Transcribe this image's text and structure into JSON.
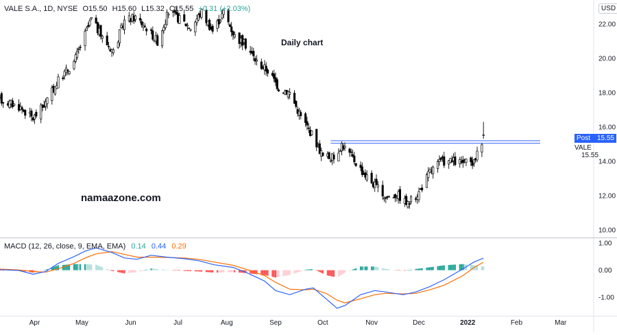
{
  "header": {
    "symbol": "VALE S.A., 1D, NYSE",
    "open": "O15.50",
    "high": "H15.60",
    "low": "L15.32",
    "close": "C15.55",
    "change": "+0.31 (+2.03%)"
  },
  "annotations": {
    "title": "Daily chart",
    "watermark": "namaazone.com"
  },
  "price_scale": {
    "currency": "USD",
    "post_label": "Post",
    "post_value": "15.55",
    "symbol_tag": "VALE",
    "symbol_value": "15.55"
  },
  "macd_legend": {
    "label": "MACD (12, 26, close, 9, EMA, EMA)",
    "hist": "0.14",
    "macd": "0.44",
    "signal": "0.29"
  },
  "colors": {
    "up": "#ffffff",
    "down": "#000000",
    "wick": "#000000",
    "macd_line": "#2962ff",
    "signal_line": "#ff6d00",
    "hist_pos_strong": "#26a69a",
    "hist_pos_weak": "#b2dfdb",
    "hist_neg_strong": "#ff5252",
    "hist_neg_weak": "#ffcdd2",
    "resistance": "#2962ff",
    "post_badge": "#2962ff"
  },
  "chart_data": [
    {
      "type": "candlestick",
      "title": "",
      "y_ticks": [
        "10.00",
        "12.00",
        "14.00",
        "16.00",
        "18.00",
        "20.00",
        "22.00"
      ],
      "x_ticks": [
        "Apr",
        "May",
        "Jun",
        "Jul",
        "Aug",
        "Sep",
        "Oct",
        "Nov",
        "Dec",
        "2022",
        "Feb",
        "Mar"
      ],
      "ylim": [
        9.6,
        23.4
      ],
      "x_range": [
        "2021-03-10",
        "2022-03-22"
      ],
      "last": {
        "date": "2022-01-11",
        "open": 15.5,
        "high": 15.6,
        "low": 15.32,
        "close": 15.55
      },
      "resistance_levels": [
        15.05,
        15.2
      ],
      "trend_points": [
        [
          "2021-03-10",
          17.6
        ],
        [
          "2021-03-22",
          17.2
        ],
        [
          "2021-03-31",
          16.5
        ],
        [
          "2021-04-08",
          17.4
        ],
        [
          "2021-04-16",
          18.7
        ],
        [
          "2021-04-26",
          19.8
        ],
        [
          "2021-05-03",
          21.4
        ],
        [
          "2021-05-07",
          22.3
        ],
        [
          "2021-05-14",
          21.2
        ],
        [
          "2021-05-21",
          20.4
        ],
        [
          "2021-05-28",
          22.2
        ],
        [
          "2021-06-04",
          22.4
        ],
        [
          "2021-06-11",
          21.8
        ],
        [
          "2021-06-18",
          21.0
        ],
        [
          "2021-06-25",
          22.7
        ],
        [
          "2021-07-02",
          22.3
        ],
        [
          "2021-07-09",
          21.8
        ],
        [
          "2021-07-16",
          22.7
        ],
        [
          "2021-07-23",
          21.6
        ],
        [
          "2021-07-30",
          22.7
        ],
        [
          "2021-08-06",
          21.3
        ],
        [
          "2021-08-13",
          20.8
        ],
        [
          "2021-08-20",
          19.8
        ],
        [
          "2021-08-27",
          19.3
        ],
        [
          "2021-09-03",
          18.3
        ],
        [
          "2021-09-10",
          18.0
        ],
        [
          "2021-09-17",
          16.6
        ],
        [
          "2021-09-24",
          15.6
        ],
        [
          "2021-10-01",
          14.3
        ],
        [
          "2021-10-08",
          14.2
        ],
        [
          "2021-10-13",
          15.0
        ],
        [
          "2021-10-20",
          14.2
        ],
        [
          "2021-10-27",
          13.3
        ],
        [
          "2021-11-03",
          12.6
        ],
        [
          "2021-11-10",
          11.9
        ],
        [
          "2021-11-17",
          12.1
        ],
        [
          "2021-11-24",
          11.5
        ],
        [
          "2021-12-01",
          12.2
        ],
        [
          "2021-12-08",
          13.4
        ],
        [
          "2021-12-15",
          14.0
        ],
        [
          "2021-12-22",
          14.0
        ],
        [
          "2021-12-29",
          13.9
        ],
        [
          "2022-01-05",
          13.9
        ],
        [
          "2022-01-07",
          14.6
        ],
        [
          "2022-01-10",
          15.2
        ],
        [
          "2022-01-11",
          15.55
        ]
      ]
    },
    {
      "type": "macd",
      "title": "",
      "y_ticks": [
        "1.00",
        "0.00",
        "-1.00"
      ],
      "ylim": [
        -1.65,
        1.15
      ],
      "macd": [
        [
          "2021-03-10",
          0.02
        ],
        [
          "2021-03-22",
          -0.01
        ],
        [
          "2021-03-31",
          -0.15
        ],
        [
          "2021-04-08",
          -0.05
        ],
        [
          "2021-04-16",
          0.25
        ],
        [
          "2021-04-26",
          0.5
        ],
        [
          "2021-05-03",
          0.7
        ],
        [
          "2021-05-10",
          0.82
        ],
        [
          "2021-05-20",
          0.65
        ],
        [
          "2021-05-28",
          0.45
        ],
        [
          "2021-06-05",
          0.4
        ],
        [
          "2021-06-14",
          0.55
        ],
        [
          "2021-06-24",
          0.48
        ],
        [
          "2021-07-05",
          0.42
        ],
        [
          "2021-07-14",
          0.35
        ],
        [
          "2021-07-24",
          0.2
        ],
        [
          "2021-08-05",
          0.1
        ],
        [
          "2021-08-14",
          -0.1
        ],
        [
          "2021-08-25",
          -0.4
        ],
        [
          "2021-09-01",
          -0.75
        ],
        [
          "2021-09-10",
          -0.9
        ],
        [
          "2021-09-20",
          -0.7
        ],
        [
          "2021-09-25",
          -0.65
        ],
        [
          "2021-10-03",
          -1.05
        ],
        [
          "2021-10-10",
          -1.4
        ],
        [
          "2021-10-15",
          -1.3
        ],
        [
          "2021-10-25",
          -0.9
        ],
        [
          "2021-11-03",
          -0.75
        ],
        [
          "2021-11-10",
          -0.8
        ],
        [
          "2021-11-21",
          -0.9
        ],
        [
          "2021-11-29",
          -0.8
        ],
        [
          "2021-12-08",
          -0.6
        ],
        [
          "2021-12-17",
          -0.35
        ],
        [
          "2021-12-29",
          0.05
        ],
        [
          "2022-01-05",
          0.3
        ],
        [
          "2022-01-11",
          0.44
        ]
      ],
      "signal": [
        [
          "2021-03-10",
          0.04
        ],
        [
          "2021-03-22",
          0.01
        ],
        [
          "2021-03-31",
          -0.05
        ],
        [
          "2021-04-08",
          -0.07
        ],
        [
          "2021-04-16",
          0.05
        ],
        [
          "2021-04-26",
          0.25
        ],
        [
          "2021-05-03",
          0.45
        ],
        [
          "2021-05-10",
          0.6
        ],
        [
          "2021-05-20",
          0.68
        ],
        [
          "2021-05-28",
          0.58
        ],
        [
          "2021-06-05",
          0.48
        ],
        [
          "2021-06-14",
          0.48
        ],
        [
          "2021-06-24",
          0.47
        ],
        [
          "2021-07-05",
          0.45
        ],
        [
          "2021-07-14",
          0.4
        ],
        [
          "2021-07-24",
          0.3
        ],
        [
          "2021-08-05",
          0.18
        ],
        [
          "2021-08-14",
          0.02
        ],
        [
          "2021-08-25",
          -0.2
        ],
        [
          "2021-09-01",
          -0.45
        ],
        [
          "2021-09-10",
          -0.7
        ],
        [
          "2021-09-20",
          -0.72
        ],
        [
          "2021-09-25",
          -0.7
        ],
        [
          "2021-10-03",
          -0.85
        ],
        [
          "2021-10-10",
          -1.1
        ],
        [
          "2021-10-15",
          -1.2
        ],
        [
          "2021-10-25",
          -1.05
        ],
        [
          "2021-11-03",
          -0.9
        ],
        [
          "2021-11-10",
          -0.85
        ],
        [
          "2021-11-21",
          -0.87
        ],
        [
          "2021-11-29",
          -0.85
        ],
        [
          "2021-12-08",
          -0.72
        ],
        [
          "2021-12-17",
          -0.55
        ],
        [
          "2021-12-29",
          -0.2
        ],
        [
          "2022-01-05",
          0.1
        ],
        [
          "2022-01-11",
          0.29
        ]
      ]
    }
  ]
}
